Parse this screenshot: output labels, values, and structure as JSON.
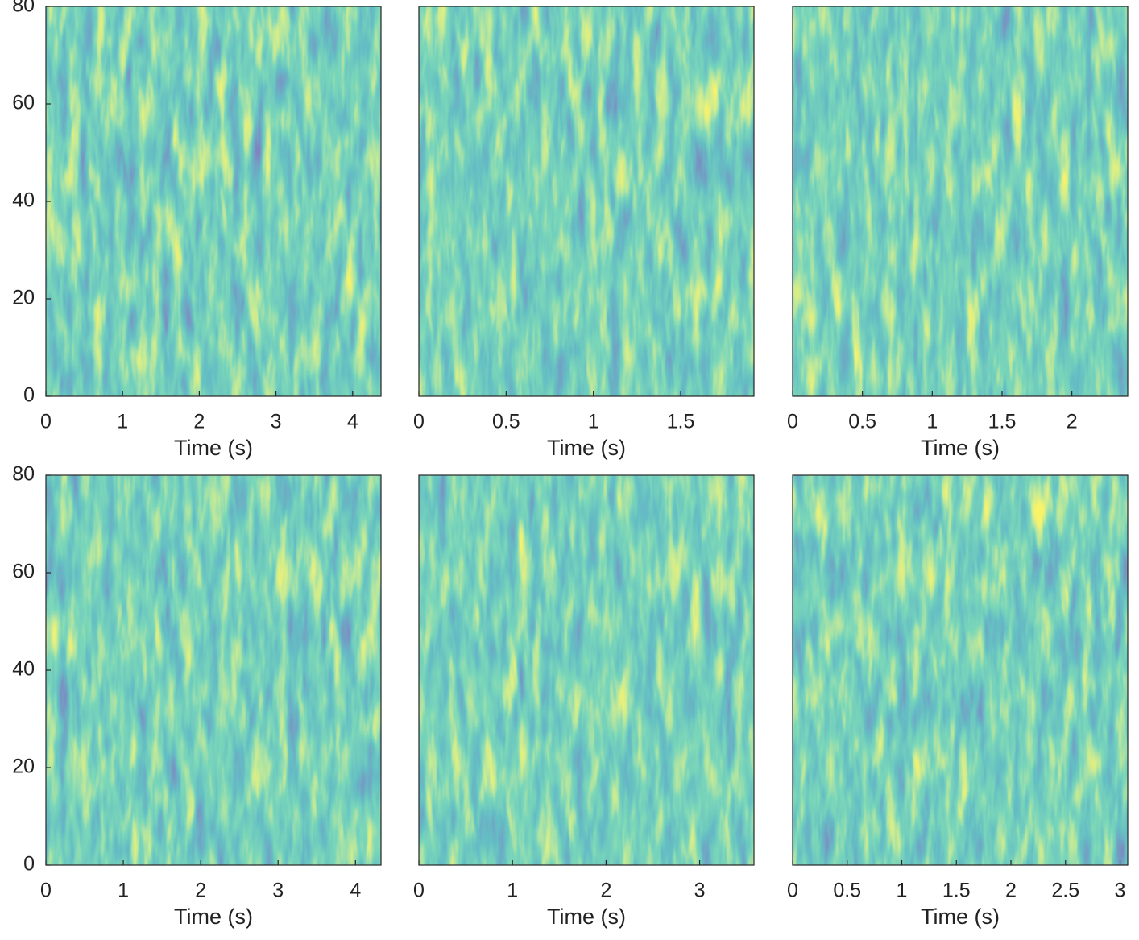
{
  "chart_data": [
    {
      "type": "spectrogram",
      "xlabel": "Time (s)",
      "xlim": [
        0,
        4.37
      ],
      "xticks": [
        0,
        1,
        2,
        3,
        4
      ],
      "ylim": [
        0,
        80
      ],
      "yticks": [
        0,
        20,
        40,
        60,
        80
      ]
    },
    {
      "type": "spectrogram",
      "xlabel": "Time (s)",
      "xlim": [
        0,
        1.92
      ],
      "xticks": [
        0,
        0.5,
        1,
        1.5
      ],
      "ylim": [
        0,
        80
      ]
    },
    {
      "type": "spectrogram",
      "xlabel": "Time (s)",
      "xlim": [
        0,
        2.4
      ],
      "xticks": [
        0,
        0.5,
        1,
        1.5,
        2
      ],
      "ylim": [
        0,
        80
      ]
    },
    {
      "type": "spectrogram",
      "xlabel": "Time (s)",
      "xlim": [
        0,
        4.33
      ],
      "xticks": [
        0,
        1,
        2,
        3,
        4
      ],
      "ylim": [
        0,
        80
      ],
      "yticks": [
        0,
        20,
        40,
        60,
        80
      ]
    },
    {
      "type": "spectrogram",
      "xlabel": "Time (s)",
      "xlim": [
        0,
        3.58
      ],
      "xticks": [
        0,
        1,
        2,
        3
      ],
      "ylim": [
        0,
        80
      ]
    },
    {
      "type": "spectrogram",
      "xlabel": "Time (s)",
      "xlim": [
        0,
        3.07
      ],
      "xticks": [
        0,
        0.5,
        1,
        1.5,
        2,
        2.5,
        3
      ],
      "ylim": [
        0,
        80
      ]
    }
  ]
}
